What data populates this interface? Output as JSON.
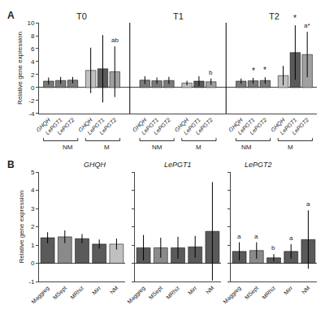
{
  "chart_data": [
    {
      "type": "bar",
      "panel": "A",
      "categories": [
        "GHQH",
        "LePGT1",
        "LePGT2"
      ],
      "periods": [
        {
          "label": "T0",
          "subgroups": [
            {
              "label": "NM",
              "values": [
                1.0,
                1.1,
                1.15
              ],
              "errors": [
                0.55,
                0.55,
                0.5
              ],
              "colors": [
                "#7a7a7a",
                "#7a7a7a",
                "#7a7a7a"
              ]
            },
            {
              "label": "M",
              "values": [
                2.65,
                2.9,
                2.45
              ],
              "errors": [
                3.5,
                5.2,
                3.9
              ],
              "colors": [
                "#c0c0c0",
                "#5a5a5a",
                "#a0a0a0"
              ]
            }
          ]
        },
        {
          "label": "T1",
          "subgroups": [
            {
              "label": "NM",
              "values": [
                1.15,
                1.05,
                1.1
              ],
              "errors": [
                0.6,
                0.5,
                0.55
              ],
              "colors": [
                "#7a7a7a",
                "#7a7a7a",
                "#7a7a7a"
              ]
            },
            {
              "label": "M",
              "values": [
                0.7,
                1.0,
                0.9
              ],
              "errors": [
                0.35,
                0.75,
                0.5
              ],
              "colors": [
                "#c0c0c0",
                "#5a5a5a",
                "#a0a0a0"
              ]
            }
          ]
        },
        {
          "label": "T2",
          "subgroups": [
            {
              "label": "NM",
              "values": [
                1.0,
                1.05,
                1.1
              ],
              "errors": [
                0.4,
                0.45,
                0.5
              ],
              "colors": [
                "#7a7a7a",
                "#7a7a7a",
                "#7a7a7a"
              ]
            },
            {
              "label": "M",
              "values": [
                1.85,
                5.4,
                5.1
              ],
              "errors": [
                1.5,
                4.2,
                3.5
              ],
              "colors": [
                "#c0c0c0",
                "#5a5a5a",
                "#a0a0a0"
              ]
            }
          ]
        }
      ],
      "annotations": [
        {
          "period": "T0",
          "subgroup": "M",
          "category": "LePGT2",
          "text": "ab"
        },
        {
          "period": "T1",
          "subgroup": "M",
          "category": "LePGT2",
          "text": "b"
        },
        {
          "period": "T2",
          "subgroup": "NM",
          "category": "LePGT1",
          "text": "*"
        },
        {
          "period": "T2",
          "subgroup": "NM",
          "category": "LePGT2",
          "text": "*"
        },
        {
          "period": "T2",
          "subgroup": "M",
          "category": "LePGT1",
          "text": "*"
        },
        {
          "period": "T2",
          "subgroup": "M",
          "category": "LePGT2",
          "text": "a*"
        }
      ],
      "ylabel": "Relative gene expression",
      "ylim": [
        -4,
        10
      ],
      "yticks": [
        -4,
        -2,
        0,
        2,
        4,
        6,
        8,
        10
      ],
      "grid": false
    },
    {
      "type": "bar",
      "panel": "B",
      "title": "GHQH",
      "categories": [
        "Maggreg",
        "MSept",
        "MRhiz",
        "Mirr",
        "NM"
      ],
      "values": [
        1.4,
        1.45,
        1.35,
        1.05,
        1.05
      ],
      "errors": [
        0.3,
        0.35,
        0.25,
        0.25,
        0.3
      ],
      "colors": [
        "#5a5a5a",
        "#8a8a8a",
        "#5a5a5a",
        "#5a5a5a",
        "#c0c0c0"
      ],
      "ylabel": "Relative gene expression",
      "ylim": [
        -1,
        5
      ],
      "yticks": [
        -1,
        0,
        1,
        2,
        3,
        4,
        5
      ],
      "grid": false
    },
    {
      "type": "bar",
      "title": "LePGT1",
      "categories": [
        "Maggreg",
        "MSept",
        "MRhiz",
        "Mirr",
        "NM"
      ],
      "values": [
        0.85,
        0.85,
        0.85,
        0.9,
        1.75
      ],
      "errors": [
        0.7,
        0.55,
        0.6,
        0.6,
        2.7
      ],
      "colors": [
        "#5a5a5a",
        "#8a8a8a",
        "#5a5a5a",
        "#5a5a5a",
        "#5a5a5a"
      ],
      "ylim": [
        -1,
        5
      ],
      "yticks": [
        -1,
        0,
        1,
        2,
        3,
        4,
        5
      ],
      "grid": false,
      "tick_labels": "x"
    },
    {
      "type": "bar",
      "title": "LePGT2",
      "categories": [
        "Maggreg",
        "MSept",
        "MRhiz",
        "Mirr",
        "NM"
      ],
      "values": [
        0.65,
        0.7,
        0.3,
        0.65,
        1.3
      ],
      "errors": [
        0.5,
        0.45,
        0.2,
        0.4,
        1.6
      ],
      "colors": [
        "#5a5a5a",
        "#8a8a8a",
        "#5a5a5a",
        "#5a5a5a",
        "#5a5a5a"
      ],
      "annotations": [
        {
          "category": "Maggreg",
          "text": "a"
        },
        {
          "category": "MSept",
          "text": "a"
        },
        {
          "category": "MRhiz",
          "text": "b"
        },
        {
          "category": "Mirr",
          "text": "a"
        },
        {
          "category": "NM",
          "text": "a"
        }
      ],
      "ylim": [
        -1,
        5
      ],
      "yticks": [
        -1,
        0,
        1,
        2,
        3,
        4,
        5
      ],
      "grid": false,
      "tick_labels": "x"
    }
  ]
}
